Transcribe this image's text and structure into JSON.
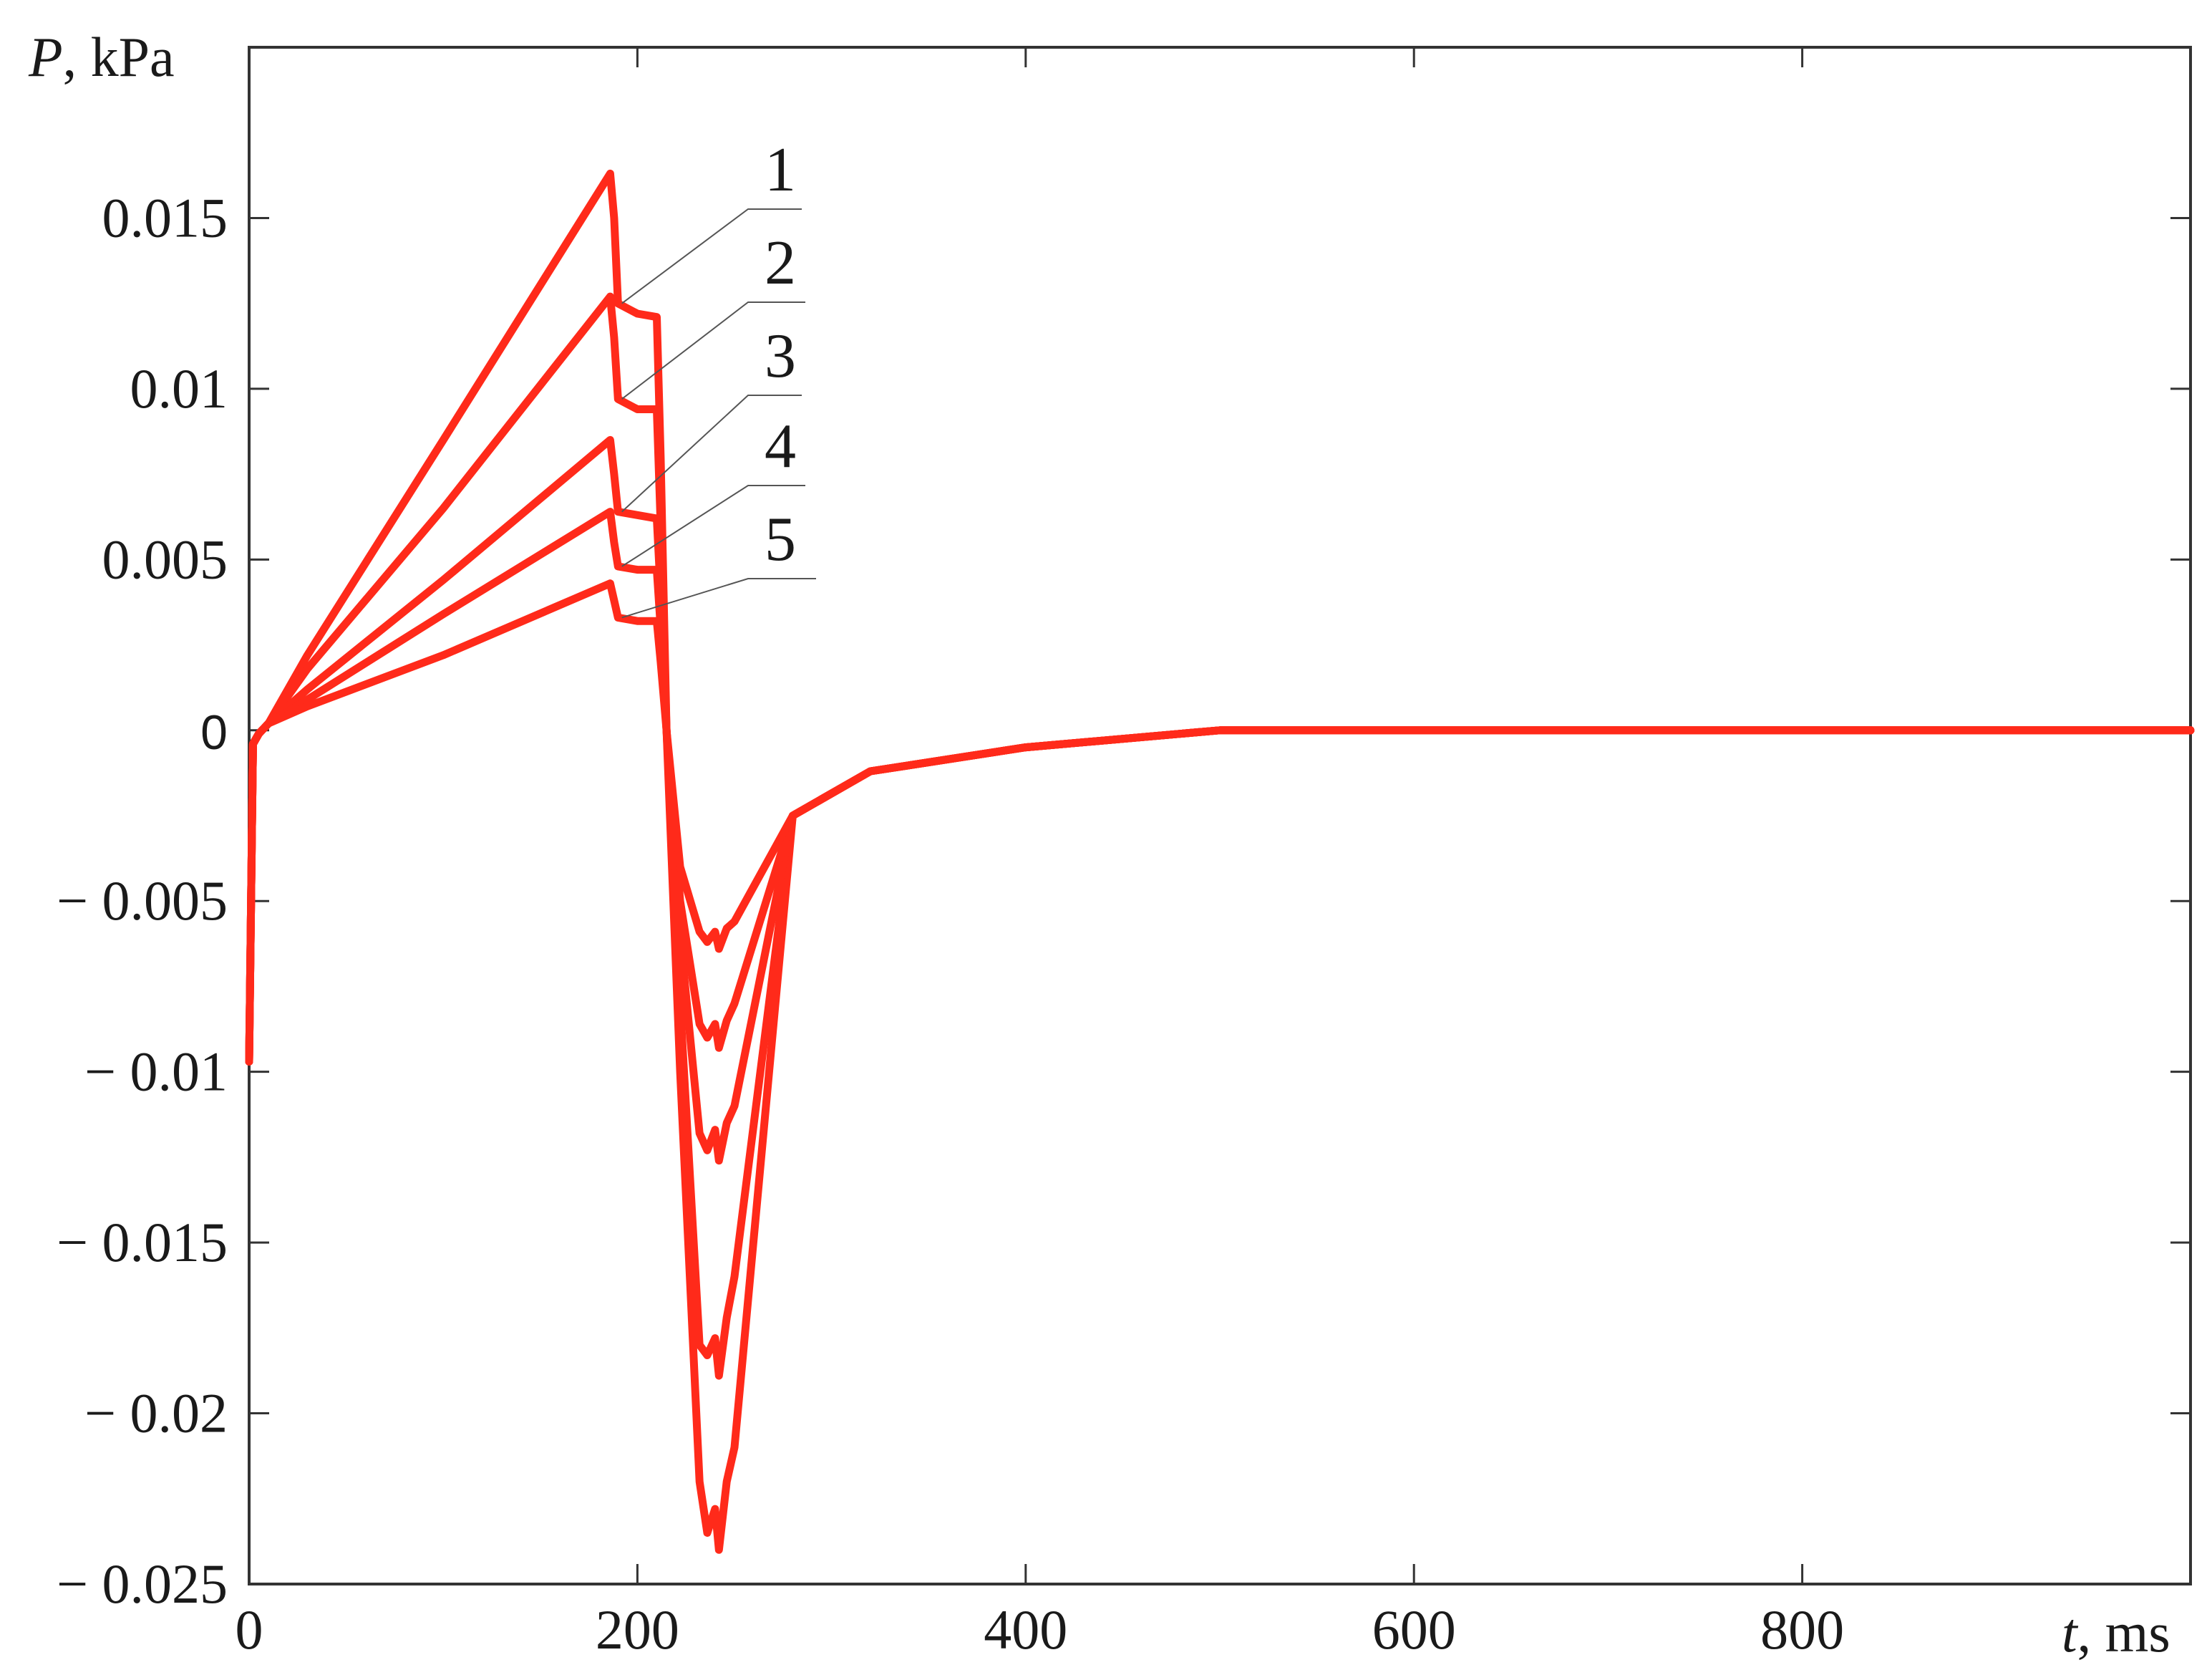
{
  "chart_data": {
    "type": "line",
    "title": "",
    "xlabel_var": "t",
    "xlabel_unit": ", ms",
    "ylabel_var": "P",
    "ylabel_unit": ", kPa",
    "xlim": [
      0,
      1000
    ],
    "ylim": [
      -0.025,
      0.02
    ],
    "x_ticks": [
      0,
      200,
      400,
      600,
      800
    ],
    "x_tick_labels": [
      "0",
      "200",
      "400",
      "600",
      "800"
    ],
    "y_ticks": [
      0.015,
      0.01,
      0.005,
      0,
      -0.005,
      -0.01,
      -0.015,
      -0.02,
      -0.025
    ],
    "y_tick_labels": [
      "0.015",
      "0.01",
      "0.005",
      "0",
      "− 0.005",
      "− 0.01",
      "− 0.015",
      "− 0.02",
      "− 0.025"
    ],
    "line_color": "#ff2a1a",
    "grid": false,
    "series": [
      {
        "name": "1",
        "x": [
          0,
          2,
          5,
          10,
          30,
          100,
          186,
          188,
          190,
          200,
          210,
          212,
          215,
          222,
          232,
          236,
          240,
          242,
          246,
          250,
          280,
          320,
          400,
          500,
          600,
          800,
          1000
        ],
        "y": [
          -0.0097,
          -0.0004,
          -0.0001,
          0.0002,
          0.0022,
          0.0085,
          0.0163,
          0.015,
          0.0125,
          0.0122,
          0.0121,
          0.008,
          0.0,
          -0.01,
          -0.022,
          -0.0235,
          -0.0228,
          -0.024,
          -0.022,
          -0.021,
          -0.0025,
          -0.0012,
          -0.0005,
          0.0,
          0.0,
          0.0,
          0.0
        ]
      },
      {
        "name": "2",
        "x": [
          0,
          2,
          5,
          10,
          30,
          100,
          186,
          188,
          190,
          200,
          210,
          212,
          215,
          222,
          232,
          236,
          240,
          242,
          246,
          250,
          280,
          320,
          400,
          500,
          600,
          800,
          1000
        ],
        "y": [
          -0.0097,
          -0.0004,
          -0.0001,
          0.0002,
          0.0018,
          0.0065,
          0.0127,
          0.0115,
          0.0097,
          0.0094,
          0.0094,
          0.006,
          0.0,
          -0.008,
          -0.018,
          -0.0183,
          -0.0178,
          -0.0189,
          -0.0172,
          -0.016,
          -0.0025,
          -0.0012,
          -0.0005,
          0.0,
          0.0,
          0.0,
          0.0
        ]
      },
      {
        "name": "3",
        "x": [
          0,
          2,
          5,
          10,
          30,
          100,
          186,
          188,
          190,
          200,
          210,
          212,
          215,
          222,
          232,
          236,
          240,
          242,
          246,
          250,
          280,
          320,
          400,
          500,
          600,
          800,
          1000
        ],
        "y": [
          -0.0097,
          -0.0004,
          -0.0001,
          0.0002,
          0.0012,
          0.0044,
          0.0085,
          0.0075,
          0.0064,
          0.0063,
          0.0062,
          0.004,
          0.0,
          -0.006,
          -0.0118,
          -0.0123,
          -0.0117,
          -0.0126,
          -0.0115,
          -0.011,
          -0.0025,
          -0.0012,
          -0.0005,
          0.0,
          0.0,
          0.0,
          0.0
        ]
      },
      {
        "name": "4",
        "x": [
          0,
          2,
          5,
          10,
          30,
          100,
          186,
          188,
          190,
          200,
          210,
          212,
          215,
          222,
          232,
          236,
          240,
          242,
          246,
          250,
          280,
          320,
          400,
          500,
          600,
          800,
          1000
        ],
        "y": [
          -0.0097,
          -0.0004,
          -0.0001,
          0.0002,
          0.0009,
          0.0034,
          0.0064,
          0.0055,
          0.0048,
          0.0047,
          0.0047,
          0.003,
          0.0,
          -0.005,
          -0.0086,
          -0.009,
          -0.0086,
          -0.0093,
          -0.0085,
          -0.008,
          -0.0025,
          -0.0012,
          -0.0005,
          0.0,
          0.0,
          0.0,
          0.0
        ]
      },
      {
        "name": "5",
        "x": [
          0,
          2,
          5,
          10,
          30,
          100,
          186,
          188,
          190,
          200,
          210,
          212,
          215,
          222,
          232,
          236,
          240,
          242,
          246,
          250,
          280,
          320,
          400,
          500,
          600,
          800,
          1000
        ],
        "y": [
          -0.0097,
          -0.0004,
          -0.0001,
          0.0002,
          0.0007,
          0.0022,
          0.0043,
          0.0038,
          0.0033,
          0.0032,
          0.0032,
          0.002,
          0.0,
          -0.004,
          -0.0059,
          -0.0062,
          -0.0059,
          -0.0064,
          -0.0058,
          -0.0056,
          -0.0025,
          -0.0012,
          -0.0005,
          0.0,
          0.0,
          0.0,
          0.0
        ]
      }
    ]
  }
}
